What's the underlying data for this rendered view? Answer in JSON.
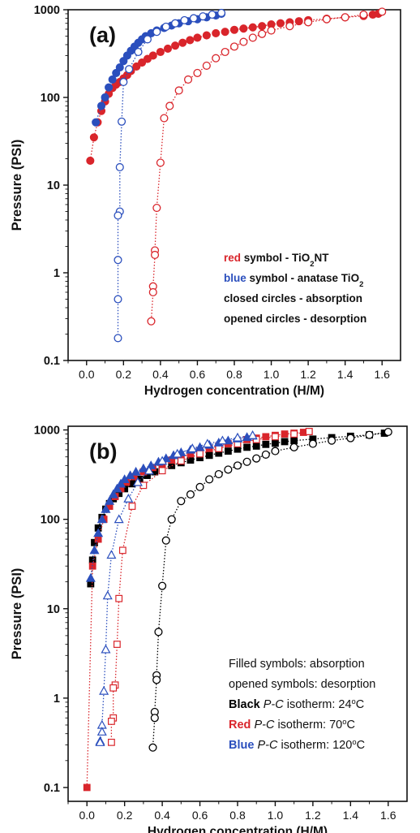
{
  "chart_data": [
    {
      "type": "scatter",
      "panel_label": "(a)",
      "xlabel": "Hydrogen concentration (H/M)",
      "ylabel": "Pressure (PSI)",
      "xlim": [
        -0.1,
        1.7
      ],
      "ylim": [
        0.1,
        1000
      ],
      "yscale": "log",
      "x_ticks": [
        "0.0",
        "0.2",
        "0.4",
        "0.6",
        "0.8",
        "1.0",
        "1.2",
        "1.4",
        "1.6"
      ],
      "y_ticks": [
        "0.1",
        "1",
        "10",
        "100",
        "1000"
      ],
      "grid": false,
      "legend": {
        "position": "bottom-right",
        "lines": [
          {
            "parts": [
              {
                "text": "red",
                "style": "red-bold"
              },
              {
                "text": " symbol - TiO",
                "style": "bold"
              },
              {
                "text": "2",
                "style": "sub-bold"
              },
              {
                "text": "NT",
                "style": "bold"
              }
            ]
          },
          {
            "parts": [
              {
                "text": "blue",
                "style": "blue-bold"
              },
              {
                "text": " symbol - anatase TiO",
                "style": "bold"
              },
              {
                "text": "2",
                "style": "sub-bold"
              }
            ]
          },
          {
            "parts": [
              {
                "text": "closed circles - absorption",
                "style": "bold"
              }
            ]
          },
          {
            "parts": [
              {
                "text": "opened circles - desorption",
                "style": "bold"
              }
            ]
          }
        ]
      },
      "series": [
        {
          "color": "#d9252b",
          "marker": "circle",
          "filled": true,
          "x": [
            0.02,
            0.04,
            0.06,
            0.08,
            0.1,
            0.12,
            0.14,
            0.16,
            0.18,
            0.2,
            0.22,
            0.24,
            0.27,
            0.3,
            0.33,
            0.36,
            0.4,
            0.44,
            0.48,
            0.52,
            0.56,
            0.6,
            0.65,
            0.7,
            0.75,
            0.8,
            0.85,
            0.9,
            0.95,
            1.0,
            1.05,
            1.1,
            1.15,
            1.2,
            1.3,
            1.4,
            1.5,
            1.55,
            1.58
          ],
          "y": [
            19,
            35,
            52,
            70,
            90,
            110,
            128,
            140,
            150,
            165,
            180,
            200,
            225,
            250,
            275,
            300,
            330,
            360,
            390,
            420,
            450,
            480,
            510,
            540,
            560,
            590,
            610,
            630,
            650,
            680,
            700,
            720,
            740,
            760,
            790,
            820,
            850,
            880,
            900
          ]
        },
        {
          "color": "#d9252b",
          "marker": "circle",
          "filled": false,
          "x": [
            1.6,
            1.5,
            1.4,
            1.3,
            1.2,
            1.1,
            1.0,
            0.95,
            0.9,
            0.85,
            0.8,
            0.75,
            0.7,
            0.65,
            0.6,
            0.55,
            0.5,
            0.45,
            0.42,
            0.4,
            0.38,
            0.37,
            0.37,
            0.36,
            0.36,
            0.35
          ],
          "y": [
            950,
            880,
            820,
            780,
            720,
            650,
            580,
            530,
            480,
            430,
            380,
            330,
            280,
            230,
            190,
            160,
            120,
            80,
            58,
            18,
            5.5,
            1.8,
            1.6,
            0.7,
            0.6,
            0.28
          ]
        },
        {
          "color": "#2b4fbd",
          "marker": "circle",
          "filled": true,
          "x": [
            0.05,
            0.08,
            0.1,
            0.12,
            0.14,
            0.16,
            0.18,
            0.2,
            0.22,
            0.24,
            0.26,
            0.28,
            0.3,
            0.32,
            0.35,
            0.38,
            0.42,
            0.46,
            0.5,
            0.55,
            0.6,
            0.65,
            0.7,
            0.73
          ],
          "y": [
            52,
            80,
            100,
            130,
            160,
            190,
            220,
            260,
            300,
            340,
            380,
            420,
            460,
            500,
            540,
            580,
            620,
            660,
            700,
            740,
            780,
            820,
            860,
            900
          ]
        },
        {
          "color": "#2b4fbd",
          "marker": "circle",
          "filled": false,
          "x": [
            0.73,
            0.68,
            0.63,
            0.58,
            0.53,
            0.48,
            0.43,
            0.38,
            0.33,
            0.28,
            0.23,
            0.2,
            0.19,
            0.18,
            0.18,
            0.17,
            0.17,
            0.17,
            0.17
          ],
          "y": [
            920,
            880,
            840,
            800,
            760,
            700,
            640,
            560,
            460,
            330,
            210,
            150,
            53,
            16,
            5,
            4.5,
            1.4,
            0.5,
            0.18
          ]
        }
      ]
    },
    {
      "type": "scatter",
      "panel_label": "(b)",
      "xlabel": "Hydrogen concentration (H/M)",
      "ylabel": "Pressure (PSI)",
      "xlim": [
        -0.1,
        1.7
      ],
      "ylim": [
        0.07,
        1100
      ],
      "yscale": "log",
      "x_ticks": [
        "0.0",
        "0.2",
        "0.4",
        "0.6",
        "0.8",
        "1.0",
        "1.2",
        "1.4",
        "1.6"
      ],
      "y_ticks": [
        "0.1",
        "1",
        "10",
        "100",
        "1000"
      ],
      "grid": false,
      "legend": {
        "position": "bottom-right",
        "lines": [
          {
            "parts": [
              {
                "text": "Filled symbols: absorption",
                "style": "normal"
              }
            ]
          },
          {
            "parts": [
              {
                "text": "opened symbols: desorption",
                "style": "normal"
              }
            ]
          },
          {
            "parts": [
              {
                "text": "Black",
                "style": "black-bold"
              },
              {
                "text": " ",
                "style": "normal"
              },
              {
                "text": "P-C",
                "style": "italic"
              },
              {
                "text": " isotherm: 24",
                "style": "normal"
              },
              {
                "text": "o",
                "style": "sup"
              },
              {
                "text": "C",
                "style": "normal"
              }
            ]
          },
          {
            "parts": [
              {
                "text": "Red",
                "style": "red-bold"
              },
              {
                "text": " ",
                "style": "normal"
              },
              {
                "text": "P-C",
                "style": "italic"
              },
              {
                "text": " isotherm: 70",
                "style": "normal"
              },
              {
                "text": "o",
                "style": "sup"
              },
              {
                "text": "C",
                "style": "normal"
              }
            ]
          },
          {
            "parts": [
              {
                "text": "Blue",
                "style": "blue-bold"
              },
              {
                "text": " ",
                "style": "normal"
              },
              {
                "text": "P-C",
                "style": "italic"
              },
              {
                "text": " isotherm: 120",
                "style": "normal"
              },
              {
                "text": "o",
                "style": "sup"
              },
              {
                "text": "C",
                "style": "normal"
              }
            ]
          }
        ]
      },
      "series": [
        {
          "color": "#000000",
          "marker": "square",
          "filled": true,
          "x": [
            0.02,
            0.03,
            0.04,
            0.06,
            0.08,
            0.1,
            0.12,
            0.14,
            0.17,
            0.2,
            0.24,
            0.28,
            0.32,
            0.36,
            0.4,
            0.45,
            0.5,
            0.55,
            0.6,
            0.65,
            0.7,
            0.75,
            0.8,
            0.85,
            0.9,
            0.95,
            1.0,
            1.05,
            1.1,
            1.2,
            1.3,
            1.4,
            1.5,
            1.58
          ],
          "y": [
            19,
            35,
            55,
            80,
            105,
            130,
            150,
            170,
            195,
            220,
            250,
            280,
            310,
            340,
            370,
            400,
            430,
            460,
            490,
            520,
            550,
            580,
            610,
            640,
            660,
            690,
            710,
            740,
            760,
            790,
            820,
            850,
            880,
            920
          ]
        },
        {
          "color": "#000000",
          "marker": "circle",
          "filled": false,
          "x": [
            1.6,
            1.5,
            1.4,
            1.3,
            1.2,
            1.1,
            1.0,
            0.95,
            0.9,
            0.85,
            0.8,
            0.75,
            0.7,
            0.65,
            0.6,
            0.55,
            0.5,
            0.45,
            0.42,
            0.4,
            0.38,
            0.37,
            0.37,
            0.36,
            0.36,
            0.35
          ],
          "y": [
            950,
            880,
            810,
            760,
            700,
            640,
            580,
            530,
            480,
            440,
            400,
            360,
            320,
            280,
            230,
            190,
            160,
            100,
            58,
            18,
            5.5,
            1.8,
            1.6,
            0.7,
            0.6,
            0.28
          ]
        },
        {
          "color": "#d9252b",
          "marker": "square",
          "filled": true,
          "x": [
            0.0,
            0.03,
            0.06,
            0.09,
            0.12,
            0.15,
            0.18,
            0.21,
            0.25,
            0.3,
            0.35,
            0.4,
            0.45,
            0.5,
            0.55,
            0.6,
            0.65,
            0.7,
            0.75,
            0.8,
            0.85,
            0.9,
            0.95,
            1.0,
            1.05,
            1.1,
            1.15,
            1.18
          ],
          "y": [
            0.1,
            30,
            60,
            100,
            140,
            180,
            220,
            260,
            300,
            340,
            380,
            420,
            460,
            500,
            540,
            580,
            620,
            660,
            700,
            740,
            780,
            810,
            840,
            870,
            900,
            920,
            940,
            960
          ]
        },
        {
          "color": "#d9252b",
          "marker": "square",
          "filled": false,
          "x": [
            1.18,
            1.1,
            1.0,
            0.9,
            0.8,
            0.7,
            0.6,
            0.5,
            0.4,
            0.3,
            0.24,
            0.19,
            0.17,
            0.16,
            0.15,
            0.14,
            0.14,
            0.13,
            0.13
          ],
          "y": [
            960,
            900,
            840,
            780,
            700,
            620,
            540,
            450,
            350,
            240,
            140,
            45,
            13,
            4,
            1.4,
            1.3,
            0.6,
            0.55,
            0.32
          ]
        },
        {
          "color": "#2b4fbd",
          "marker": "triangle",
          "filled": true,
          "x": [
            0.02,
            0.04,
            0.06,
            0.08,
            0.1,
            0.12,
            0.14,
            0.16,
            0.18,
            0.2,
            0.23,
            0.26,
            0.3,
            0.34,
            0.38,
            0.42,
            0.46,
            0.5,
            0.55,
            0.6,
            0.65,
            0.7,
            0.75,
            0.8,
            0.85,
            0.88
          ],
          "y": [
            22,
            45,
            70,
            100,
            130,
            160,
            190,
            220,
            250,
            280,
            310,
            340,
            370,
            400,
            440,
            480,
            520,
            560,
            600,
            640,
            680,
            720,
            760,
            800,
            830,
            860
          ]
        },
        {
          "color": "#2b4fbd",
          "marker": "triangle",
          "filled": false,
          "x": [
            0.88,
            0.8,
            0.72,
            0.64,
            0.56,
            0.48,
            0.4,
            0.33,
            0.27,
            0.22,
            0.17,
            0.13,
            0.11,
            0.1,
            0.09,
            0.08,
            0.08,
            0.07,
            0.07
          ],
          "y": [
            870,
            820,
            760,
            700,
            620,
            540,
            450,
            350,
            260,
            170,
            100,
            40,
            14,
            3.5,
            1.2,
            0.5,
            0.42,
            0.33,
            0.32
          ]
        }
      ]
    }
  ]
}
